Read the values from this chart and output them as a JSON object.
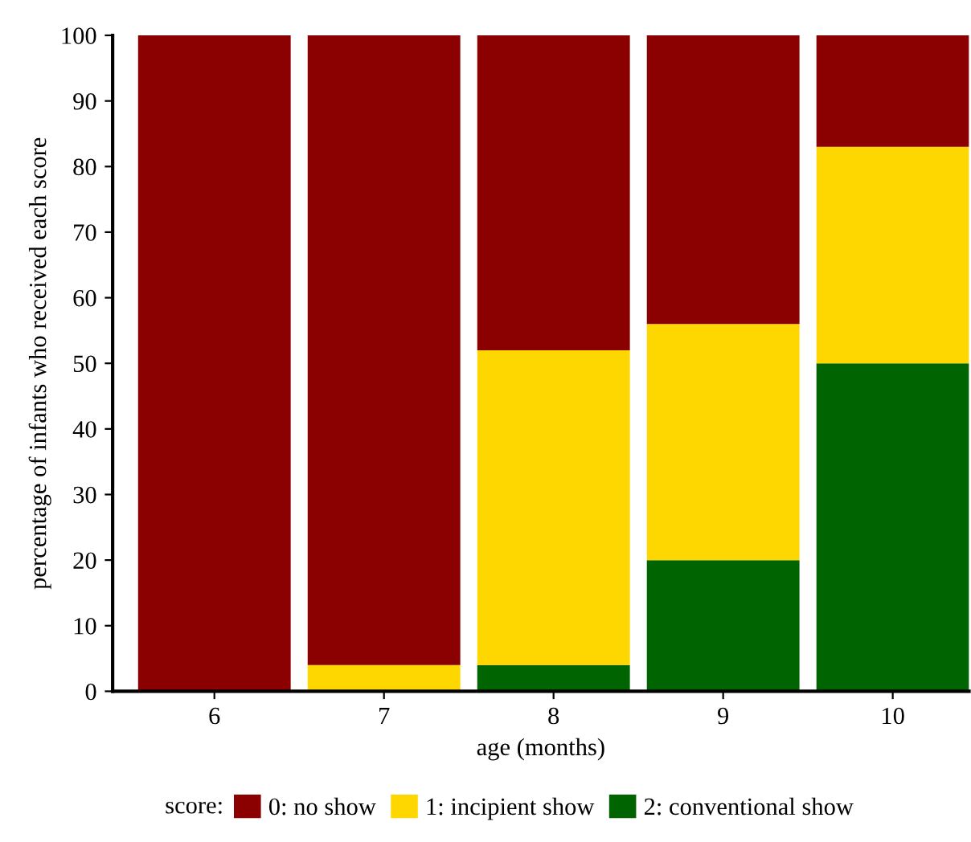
{
  "chart_data": {
    "type": "bar",
    "stacked": true,
    "xlabel": "age (months)",
    "ylabel": "percentage of infants who received each score",
    "legend_title": "score:",
    "categories": [
      "6",
      "7",
      "8",
      "9",
      "10"
    ],
    "series": [
      {
        "name": "2: conventional show",
        "color": "#006400",
        "values": [
          0,
          0,
          4,
          20,
          50
        ]
      },
      {
        "name": "1: incipient show",
        "color": "#ffd700",
        "values": [
          0,
          4,
          48,
          36,
          33
        ]
      },
      {
        "name": "0: no show",
        "color": "#8b0000",
        "values": [
          100,
          96,
          48,
          44,
          17
        ]
      }
    ],
    "ylim": [
      0,
      100
    ],
    "yticks": [
      0,
      10,
      20,
      30,
      40,
      50,
      60,
      70,
      80,
      90,
      100
    ],
    "grid": false,
    "legend": "bottom"
  }
}
